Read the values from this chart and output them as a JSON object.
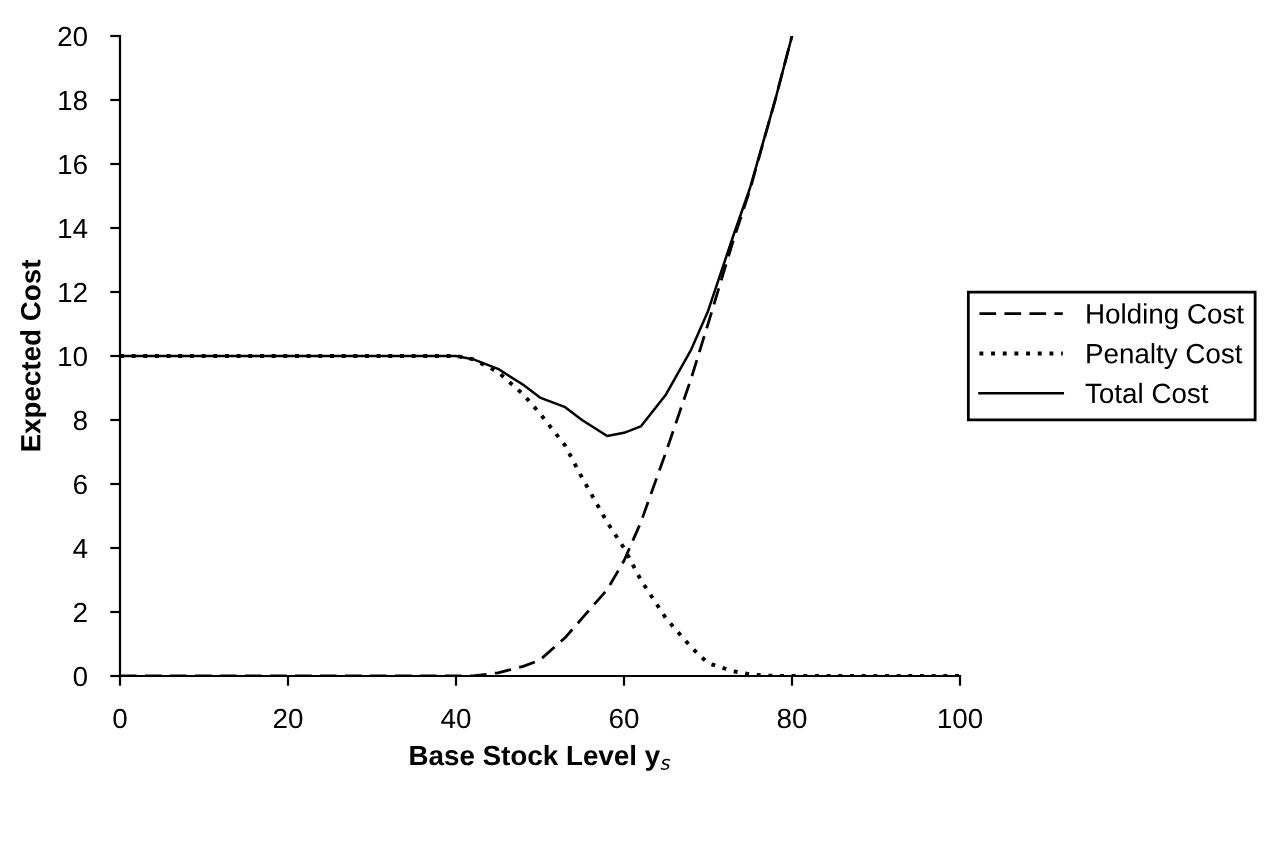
{
  "chart_data": {
    "type": "line",
    "xlabel": "Base Stock Level y$_{s}$",
    "ylabel": "Expected Cost",
    "xlim": [
      0,
      100
    ],
    "xticks": [
      0,
      20,
      40,
      60,
      80,
      100
    ],
    "ylim": [
      0,
      20
    ],
    "yticks": [
      0,
      2,
      4,
      6,
      8,
      10,
      12,
      14,
      16,
      18,
      20
    ],
    "grid": false,
    "legend": "right",
    "marker": "none",
    "series": [
      {
        "name": "Holding Cost",
        "color": "#000000",
        "line_style": "dashed",
        "x": [
          0,
          20,
          40,
          42,
          45,
          48,
          50,
          53,
          55,
          58,
          60,
          62,
          65,
          68,
          70,
          73,
          75,
          78,
          80
        ],
        "values": [
          0,
          0,
          0,
          0,
          0.1,
          0.3,
          0.5,
          1.2,
          1.8,
          2.7,
          3.6,
          4.8,
          7,
          9.3,
          11,
          13.6,
          15.2,
          18,
          20
        ]
      },
      {
        "name": "Penalty Cost",
        "color": "#000000",
        "line_style": "dotted",
        "x": [
          0,
          20,
          40,
          42,
          45,
          48,
          50,
          53,
          55,
          58,
          60,
          62,
          65,
          68,
          70,
          73,
          75,
          78,
          80,
          90,
          100
        ],
        "values": [
          10,
          10,
          10,
          9.9,
          9.5,
          8.8,
          8.2,
          7.2,
          6.2,
          4.8,
          4,
          3,
          1.8,
          0.9,
          0.4,
          0.15,
          0.05,
          0,
          0,
          0,
          0
        ]
      },
      {
        "name": "Total Cost",
        "color": "#000000",
        "line_style": "solid",
        "x": [
          0,
          20,
          40,
          42,
          45,
          48,
          50,
          53,
          55,
          58,
          60,
          62,
          65,
          68,
          70,
          73,
          75,
          78,
          80
        ],
        "values": [
          10,
          10,
          10,
          9.9,
          9.6,
          9.1,
          8.7,
          8.4,
          8,
          7.5,
          7.6,
          7.8,
          8.8,
          10.2,
          11.4,
          13.75,
          15.25,
          18,
          20
        ]
      }
    ]
  }
}
